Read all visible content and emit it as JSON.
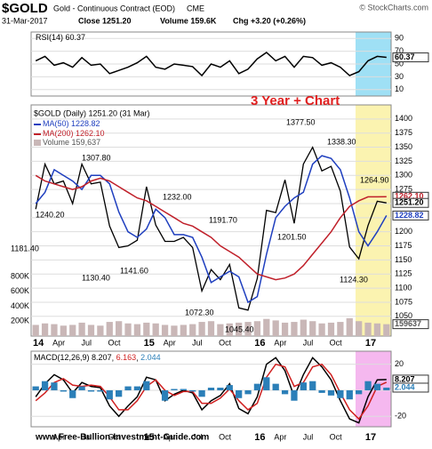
{
  "header": {
    "symbol": "$GOLD",
    "name": "Gold - Continuous Contract (EOD)",
    "exchange": "CME",
    "source": "© StockCharts.com",
    "date": "31-Mar-2017",
    "close": "Close 1251.20",
    "volume": "Volume 159.6K",
    "change": "Chg +3.20 (+0.26%)"
  },
  "footer": "www.Free-Bullion-Investment-Guide.com",
  "chart_data": [
    {
      "type": "line",
      "ylim": [
        0,
        100
      ],
      "yticks": [
        10,
        30,
        50,
        70,
        90
      ],
      "grid": true,
      "series": [
        {
          "name": "RSI(14)",
          "color": "#000000",
          "last": 60.37,
          "values": [
            55,
            62,
            48,
            52,
            45,
            60,
            48,
            50,
            35,
            40,
            45,
            52,
            62,
            45,
            42,
            50,
            48,
            46,
            32,
            50,
            45,
            55,
            35,
            42,
            58,
            68,
            55,
            62,
            45,
            62,
            60,
            48,
            52,
            45,
            32,
            38,
            55,
            62,
            60.37
          ]
        }
      ]
    },
    {
      "type": "line",
      "title": "$GOLD (Daily) 1251.20 (31 Mar)",
      "annotation": "3 Year + Chart",
      "price_labels": [
        "1181.40",
        "1240.20",
        "1307.80",
        "1130.40",
        "1141.60",
        "1232.00",
        "1191.70",
        "1072.30",
        "1045.40",
        "1377.50",
        "1338.30",
        "1201.50",
        "1124.30",
        "1264.90"
      ],
      "categories": [
        "14",
        null,
        null,
        "Apr",
        null,
        null,
        "Jul",
        null,
        null,
        "Oct",
        null,
        null,
        "15",
        null,
        null,
        "Apr",
        null,
        null,
        "Jul",
        null,
        null,
        "Oct",
        null,
        null,
        "16",
        null,
        null,
        "Apr",
        null,
        null,
        "Jul",
        null,
        null,
        "Oct",
        null,
        null,
        "17",
        null,
        null
      ],
      "ylim": [
        1015,
        1425
      ],
      "yticks": [
        1050,
        1075,
        1100,
        1125,
        1150,
        1175,
        1200,
        1225,
        1250,
        1275,
        1300,
        1325,
        1350,
        1375,
        1400
      ],
      "grid": true,
      "y2lim": [
        0,
        3100000
      ],
      "y2ticks": [
        {
          "value": 200000,
          "label": "200K"
        },
        {
          "value": 400000,
          "label": "400K"
        },
        {
          "value": 600000,
          "label": "600K"
        },
        {
          "value": 800000,
          "label": "800K"
        }
      ],
      "series": [
        {
          "color": "#000000",
          "last": 1251.2,
          "last_label": "1251.20",
          "values": [
            1240,
            1320,
            1285,
            1290,
            1250,
            1320,
            1285,
            1288,
            1210,
            1172,
            1175,
            1185,
            1280,
            1212,
            1183,
            1183,
            1190,
            1172,
            1095,
            1133,
            1115,
            1142,
            1065,
            1061,
            1117,
            1238,
            1234,
            1292,
            1215,
            1320,
            1350,
            1308,
            1316,
            1272,
            1173,
            1152,
            1211,
            1254,
            1251.2
          ]
        },
        {
          "name": "MA(50)",
          "color": "#1f3fbf",
          "last": 1228.82,
          "values": [
            1250,
            1270,
            1310,
            1300,
            1290,
            1275,
            1300,
            1300,
            1285,
            1235,
            1200,
            1190,
            1205,
            1240,
            1225,
            1195,
            1195,
            1190,
            1155,
            1110,
            1120,
            1130,
            1120,
            1075,
            1085,
            1160,
            1225,
            1245,
            1260,
            1270,
            1320,
            1335,
            1330,
            1310,
            1260,
            1200,
            1175,
            1200,
            1228.82
          ]
        },
        {
          "name": "MA(200)",
          "color": "#c0202a",
          "last": 1262.1,
          "last_label": "1262.10",
          "values": [
            1300,
            1290,
            1285,
            1280,
            1275,
            1280,
            1290,
            1295,
            1290,
            1280,
            1270,
            1260,
            1255,
            1245,
            1235,
            1225,
            1215,
            1210,
            1200,
            1190,
            1175,
            1165,
            1155,
            1140,
            1125,
            1120,
            1115,
            1118,
            1125,
            1140,
            1160,
            1180,
            1200,
            1225,
            1245,
            1255,
            1262,
            1262,
            1262.1
          ]
        },
        {
          "name": "Volume",
          "type": "bar",
          "axis": "y2",
          "color": "#c9b7b7",
          "last": 159637,
          "last_label": "159,637",
          "values": [
            150000,
            170000,
            160000,
            140000,
            150000,
            180000,
            150000,
            140000,
            190000,
            200000,
            170000,
            160000,
            180000,
            170000,
            150000,
            140000,
            150000,
            160000,
            190000,
            200000,
            160000,
            170000,
            180000,
            190000,
            200000,
            230000,
            210000,
            180000,
            190000,
            220000,
            200000,
            170000,
            180000,
            190000,
            240000,
            200000,
            180000,
            170000,
            159637
          ]
        }
      ]
    },
    {
      "type": "line",
      "ylim": [
        -28,
        30
      ],
      "yticks": [
        -20,
        0,
        20
      ],
      "grid": true,
      "series": [
        {
          "name": "MACD(12,26,9)",
          "color": "#000000",
          "last": 8.207,
          "values": [
            -5,
            5,
            12,
            8,
            -2,
            6,
            3,
            2,
            -12,
            -20,
            -12,
            -5,
            10,
            8,
            -8,
            -3,
            0,
            -2,
            -15,
            -8,
            -4,
            5,
            -14,
            -18,
            -5,
            20,
            25,
            15,
            -5,
            12,
            25,
            18,
            8,
            -8,
            -22,
            -25,
            -5,
            8,
            8.207
          ]
        },
        {
          "color": "#d02020",
          "last": 6.163,
          "values": [
            -8,
            -2,
            6,
            9,
            4,
            3,
            4,
            3,
            -5,
            -15,
            -15,
            -8,
            3,
            8,
            0,
            -4,
            -1,
            -1,
            -10,
            -10,
            -6,
            1,
            -8,
            -15,
            -10,
            10,
            20,
            18,
            3,
            6,
            18,
            20,
            12,
            -2,
            -15,
            -22,
            -12,
            3,
            6.163
          ]
        },
        {
          "type": "bar",
          "color": "#2b7fb8",
          "last": 2.044,
          "values": [
            3,
            7,
            6,
            -1,
            -6,
            3,
            -1,
            -1,
            -7,
            -5,
            3,
            3,
            7,
            0,
            -8,
            1,
            1,
            -1,
            -5,
            2,
            2,
            4,
            -6,
            -3,
            5,
            10,
            5,
            -3,
            -8,
            6,
            7,
            -2,
            -4,
            -6,
            -7,
            -3,
            7,
            5,
            2.044
          ]
        }
      ]
    }
  ]
}
